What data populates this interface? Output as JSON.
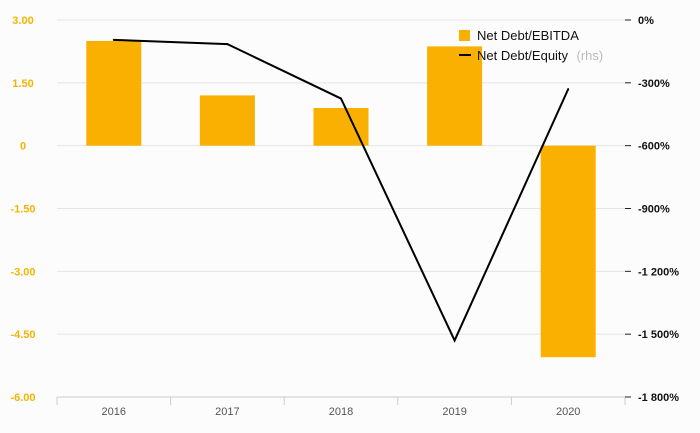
{
  "chart_data": {
    "type": "bar+line",
    "categories": [
      "2016",
      "2017",
      "2018",
      "2019",
      "2020"
    ],
    "series": [
      {
        "name": "Net Debt/EBITDA",
        "type": "bar",
        "axis": "left",
        "color": "#f9b000",
        "values": [
          2.5,
          1.2,
          0.9,
          2.37,
          -5.05
        ]
      },
      {
        "name": "Net Debt/Equity",
        "name_suffix": "(rhs)",
        "type": "line",
        "axis": "right",
        "color": "#000000",
        "values": [
          -95,
          -115,
          -375,
          -1530,
          -330
        ]
      }
    ],
    "y_left": {
      "ylim": [
        -6,
        3
      ],
      "ticks": [
        3,
        1.5,
        0,
        -1.5,
        -3,
        -4.5,
        -6
      ],
      "tick_labels": [
        "3.00",
        "1.50",
        "0",
        "-1.50",
        "-3.00",
        "-4.50",
        "-6.00"
      ]
    },
    "y_right": {
      "ylim": [
        -1800,
        0
      ],
      "ticks": [
        0,
        -300,
        -600,
        -900,
        -1200,
        -1500,
        -1800
      ],
      "tick_labels": [
        "0%",
        "-300%",
        "-600%",
        "-900%",
        "-1 200%",
        "-1 500%",
        "-1 800%"
      ]
    },
    "grid": true,
    "legend_position": "top-right",
    "title": "",
    "xlabel": "",
    "ylabel": ""
  }
}
